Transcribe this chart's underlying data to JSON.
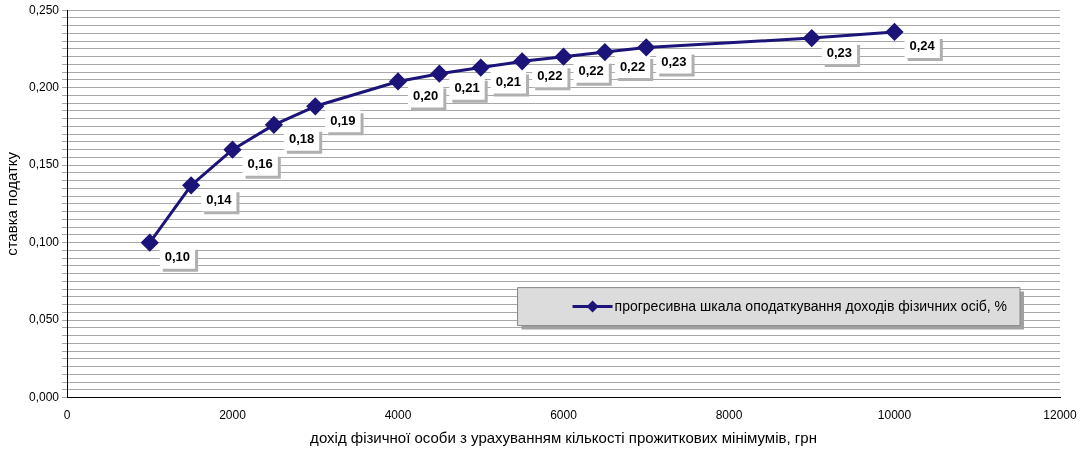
{
  "chart_data": {
    "type": "line",
    "xlabel": "дохід фізичної особи з урахуванням кількості прожиткових мінімумів, грн",
    "ylabel": "ставка податку",
    "x": [
      1000,
      1500,
      2000,
      2500,
      3000,
      4000,
      4500,
      5000,
      5500,
      6000,
      6500,
      7000,
      9000,
      10000
    ],
    "series": [
      {
        "name": "прогресивна шкала оподаткування доходів фізичних осіб, %",
        "color": "#1c1478",
        "values": [
          0.1,
          0.137,
          0.16,
          0.176,
          0.188,
          0.204,
          0.209,
          0.213,
          0.217,
          0.22,
          0.223,
          0.226,
          0.232,
          0.236
        ],
        "value_labels": [
          "0,10",
          "0,14",
          "0,16",
          "0,18",
          "0,19",
          "0,20",
          "0,21",
          "0,21",
          "0,22",
          "0,22",
          "0,22",
          "0,23",
          "0,23",
          "0,24"
        ]
      }
    ],
    "xlim": [
      0,
      12000
    ],
    "xticks": [
      0,
      2000,
      4000,
      6000,
      8000,
      10000,
      12000
    ],
    "ylim": [
      0,
      0.25
    ],
    "yticks": [
      {
        "value": 0,
        "label": "0,000"
      },
      {
        "value": 0.005,
        "label": null
      },
      {
        "value": 0.01,
        "label": null
      },
      {
        "value": 0.015,
        "label": null
      },
      {
        "value": 0.02,
        "label": null
      },
      {
        "value": 0.025,
        "label": null
      },
      {
        "value": 0.03,
        "label": null
      },
      {
        "value": 0.035,
        "label": null
      },
      {
        "value": 0.04,
        "label": null
      },
      {
        "value": 0.045,
        "label": null
      },
      {
        "value": 0.05,
        "label": "0,050"
      },
      {
        "value": 0.055,
        "label": null
      },
      {
        "value": 0.06,
        "label": null
      },
      {
        "value": 0.065,
        "label": null
      },
      {
        "value": 0.07,
        "label": null
      },
      {
        "value": 0.075,
        "label": null
      },
      {
        "value": 0.08,
        "label": null
      },
      {
        "value": 0.085,
        "label": null
      },
      {
        "value": 0.09,
        "label": null
      },
      {
        "value": 0.095,
        "label": null
      },
      {
        "value": 0.1,
        "label": "0,100"
      },
      {
        "value": 0.105,
        "label": null
      },
      {
        "value": 0.11,
        "label": null
      },
      {
        "value": 0.115,
        "label": null
      },
      {
        "value": 0.12,
        "label": null
      },
      {
        "value": 0.125,
        "label": null
      },
      {
        "value": 0.13,
        "label": null
      },
      {
        "value": 0.135,
        "label": null
      },
      {
        "value": 0.14,
        "label": null
      },
      {
        "value": 0.145,
        "label": null
      },
      {
        "value": 0.15,
        "label": "0,150"
      },
      {
        "value": 0.155,
        "label": null
      },
      {
        "value": 0.16,
        "label": null
      },
      {
        "value": 0.165,
        "label": null
      },
      {
        "value": 0.17,
        "label": null
      },
      {
        "value": 0.175,
        "label": null
      },
      {
        "value": 0.18,
        "label": null
      },
      {
        "value": 0.185,
        "label": null
      },
      {
        "value": 0.19,
        "label": null
      },
      {
        "value": 0.195,
        "label": null
      },
      {
        "value": 0.2,
        "label": "0,200"
      },
      {
        "value": 0.205,
        "label": null
      },
      {
        "value": 0.21,
        "label": null
      },
      {
        "value": 0.215,
        "label": null
      },
      {
        "value": 0.22,
        "label": null
      },
      {
        "value": 0.225,
        "label": null
      },
      {
        "value": 0.23,
        "label": null
      },
      {
        "value": 0.235,
        "label": null
      },
      {
        "value": 0.24,
        "label": null
      },
      {
        "value": 0.245,
        "label": null
      },
      {
        "value": 0.25,
        "label": "0,250"
      }
    ],
    "grid": "y",
    "legend": "bottom right",
    "marker": "diamond",
    "line_style": "solid"
  }
}
